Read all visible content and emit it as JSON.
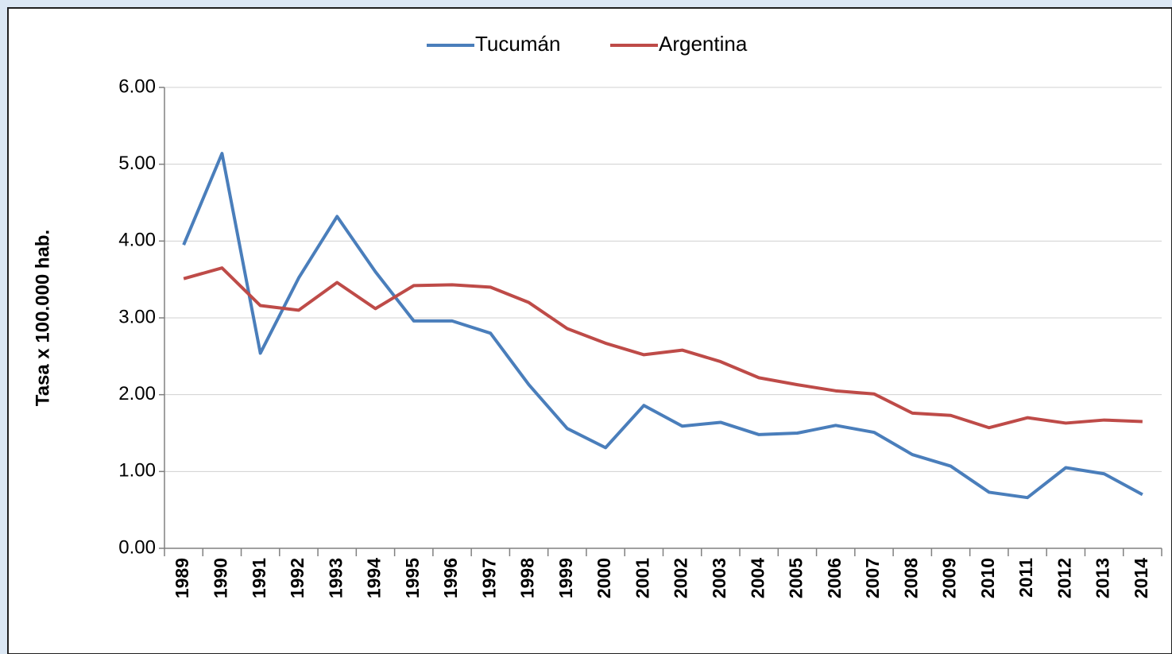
{
  "chart_data": {
    "type": "line",
    "y_label": "Tasa x 100.000 hab.",
    "categories": [
      "1989",
      "1990",
      "1991",
      "1992",
      "1993",
      "1994",
      "1995",
      "1996",
      "1997",
      "1998",
      "1999",
      "2000",
      "2001",
      "2002",
      "2003",
      "2004",
      "2005",
      "2006",
      "2007",
      "2008",
      "2009",
      "2010",
      "2011",
      "2012",
      "2013",
      "2014"
    ],
    "series": [
      {
        "name": "Tucumán",
        "color": "#4a7ebb",
        "values": [
          3.95,
          5.14,
          2.54,
          3.52,
          4.32,
          3.6,
          2.96,
          2.96,
          2.8,
          2.13,
          1.56,
          1.31,
          1.86,
          1.59,
          1.64,
          1.48,
          1.5,
          1.6,
          1.51,
          1.22,
          1.07,
          0.73,
          0.66,
          1.05,
          0.97,
          0.7
        ]
      },
      {
        "name": "Argentina",
        "color": "#be4b48",
        "values": [
          3.51,
          3.65,
          3.16,
          3.1,
          3.46,
          3.12,
          3.42,
          3.43,
          3.4,
          3.2,
          2.86,
          2.67,
          2.52,
          2.58,
          2.43,
          2.22,
          2.13,
          2.05,
          2.01,
          1.76,
          1.73,
          1.57,
          1.7,
          1.63,
          1.67,
          1.65
        ]
      }
    ],
    "ylim": [
      0,
      6
    ],
    "yticks": [
      {
        "value": 0,
        "label": "0.00"
      },
      {
        "value": 1,
        "label": "1.00"
      },
      {
        "value": 2,
        "label": "2.00"
      },
      {
        "value": 3,
        "label": "3.00"
      },
      {
        "value": 4,
        "label": "4.00"
      },
      {
        "value": 5,
        "label": "5.00"
      },
      {
        "value": 6,
        "label": "6.00"
      }
    ],
    "grid": true,
    "legend": "top"
  }
}
